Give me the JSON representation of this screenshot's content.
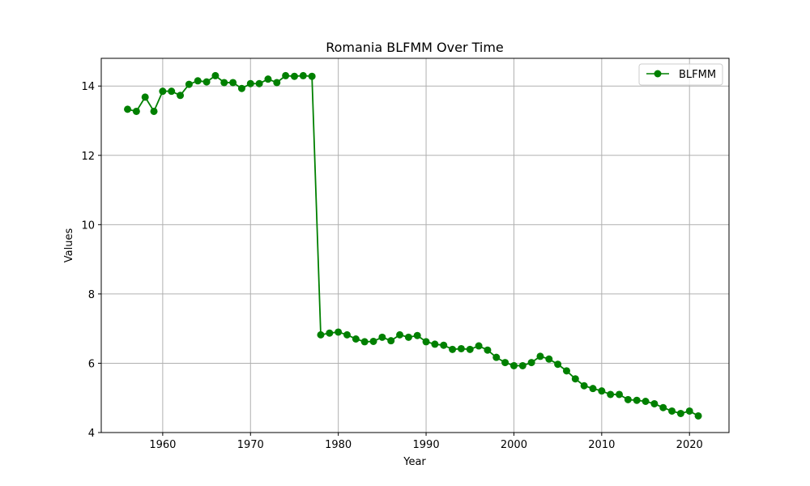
{
  "chart_data": {
    "type": "line",
    "title": "Romania BLFMM Over Time",
    "xlabel": "Year",
    "ylabel": "Values",
    "xlim": [
      1953,
      2024.5
    ],
    "ylim": [
      4,
      14.8
    ],
    "x_ticks": [
      1960,
      1970,
      1980,
      1990,
      2000,
      2010,
      2020
    ],
    "y_ticks": [
      4,
      6,
      8,
      10,
      12,
      14
    ],
    "grid": true,
    "legend_position": "top-right",
    "series": [
      {
        "name": "BLFMM",
        "color": "#008000",
        "marker": "circle",
        "x": [
          1956,
          1957,
          1958,
          1959,
          1960,
          1961,
          1962,
          1963,
          1964,
          1965,
          1966,
          1967,
          1968,
          1969,
          1970,
          1971,
          1972,
          1973,
          1974,
          1975,
          1976,
          1977,
          1978,
          1979,
          1980,
          1981,
          1982,
          1983,
          1984,
          1985,
          1986,
          1987,
          1988,
          1989,
          1990,
          1991,
          1992,
          1993,
          1994,
          1995,
          1996,
          1997,
          1998,
          1999,
          2000,
          2001,
          2002,
          2003,
          2004,
          2005,
          2006,
          2007,
          2008,
          2009,
          2010,
          2011,
          2012,
          2013,
          2014,
          2015,
          2016,
          2017,
          2018,
          2019,
          2020,
          2021
        ],
        "values": [
          13.33,
          13.27,
          13.68,
          13.27,
          13.85,
          13.85,
          13.73,
          14.05,
          14.15,
          14.12,
          14.3,
          14.1,
          14.1,
          13.93,
          14.07,
          14.07,
          14.2,
          14.1,
          14.3,
          14.28,
          14.3,
          14.28,
          6.82,
          6.87,
          6.9,
          6.82,
          6.7,
          6.62,
          6.63,
          6.75,
          6.65,
          6.82,
          6.75,
          6.8,
          6.62,
          6.55,
          6.52,
          6.4,
          6.42,
          6.4,
          6.5,
          6.38,
          6.17,
          6.02,
          5.93,
          5.93,
          6.02,
          6.2,
          6.12,
          5.97,
          5.78,
          5.55,
          5.35,
          5.27,
          5.2,
          5.1,
          5.1,
          4.95,
          4.93,
          4.9,
          4.83,
          4.72,
          4.62,
          4.55,
          4.62,
          4.48
        ]
      }
    ]
  }
}
